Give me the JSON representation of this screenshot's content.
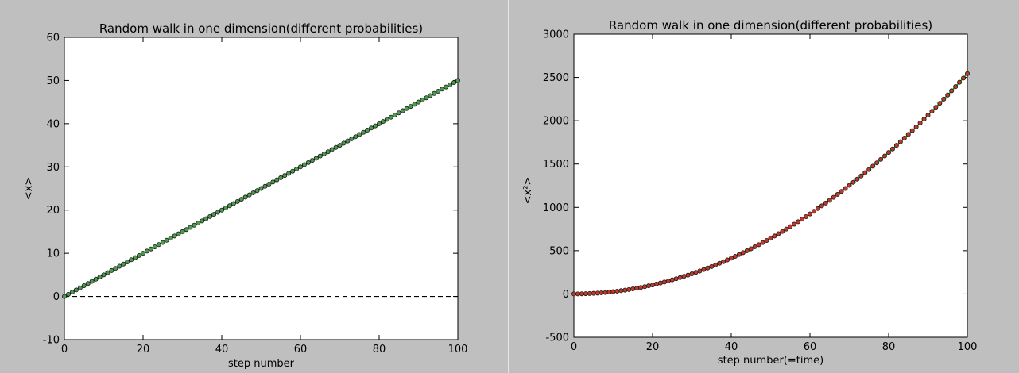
{
  "chart_data": [
    {
      "type": "scatter",
      "title": "Random walk in one dimension(different probabilities)",
      "xlabel": "step number",
      "ylabel": "<x>",
      "xlim": [
        0,
        100
      ],
      "ylim": [
        -10,
        60
      ],
      "xticks": [
        0,
        20,
        40,
        60,
        80,
        100
      ],
      "yticks": [
        -10,
        0,
        10,
        20,
        30,
        40,
        50,
        60
      ],
      "x": [
        0,
        1,
        2,
        3,
        4,
        5,
        6,
        7,
        8,
        9,
        10,
        11,
        12,
        13,
        14,
        15,
        16,
        17,
        18,
        19,
        20,
        21,
        22,
        23,
        24,
        25,
        26,
        27,
        28,
        29,
        30,
        31,
        32,
        33,
        34,
        35,
        36,
        37,
        38,
        39,
        40,
        41,
        42,
        43,
        44,
        45,
        46,
        47,
        48,
        49,
        50,
        51,
        52,
        53,
        54,
        55,
        56,
        57,
        58,
        59,
        60,
        61,
        62,
        63,
        64,
        65,
        66,
        67,
        68,
        69,
        70,
        71,
        72,
        73,
        74,
        75,
        76,
        77,
        78,
        79,
        80,
        81,
        82,
        83,
        84,
        85,
        86,
        87,
        88,
        89,
        90,
        91,
        92,
        93,
        94,
        95,
        96,
        97,
        98,
        99,
        100
      ],
      "series": [
        {
          "values": [
            0,
            0.5,
            1,
            1.5,
            2,
            2.5,
            3,
            3.5,
            4,
            4.5,
            5,
            5.5,
            6,
            6.5,
            7,
            7.5,
            8,
            8.5,
            9,
            9.5,
            10,
            10.5,
            11,
            11.5,
            12,
            12.5,
            13,
            13.5,
            14,
            14.5,
            15,
            15.5,
            16,
            16.5,
            17,
            17.5,
            18,
            18.5,
            19,
            19.5,
            20,
            20.5,
            21,
            21.5,
            22,
            22.5,
            23,
            23.5,
            24,
            24.5,
            25,
            25.5,
            26,
            26.5,
            27,
            27.5,
            28,
            28.5,
            29,
            29.5,
            30,
            30.5,
            31,
            31.5,
            32,
            32.5,
            33,
            33.5,
            34,
            34.5,
            35,
            35.5,
            36,
            36.5,
            37,
            37.5,
            38,
            38.5,
            39,
            39.5,
            40,
            40.5,
            41,
            41.5,
            42,
            42.5,
            43,
            43.5,
            44,
            44.5,
            45,
            45.5,
            46,
            46.5,
            47,
            47.5,
            48,
            48.5,
            49,
            49.5,
            50
          ],
          "marker_color": "#4f9a4f",
          "line_color": "#00a000"
        }
      ],
      "reference_line": {
        "y": 0,
        "style": "dashed",
        "color": "#000000"
      },
      "grid": false
    },
    {
      "type": "scatter",
      "title": "Random walk in one dimension(different probabilities)",
      "xlabel": "step number(=time)",
      "ylabel": "<x²>",
      "xlim": [
        0,
        100
      ],
      "ylim": [
        -500,
        3000
      ],
      "xticks": [
        0,
        20,
        40,
        60,
        80,
        100
      ],
      "yticks": [
        -500,
        0,
        500,
        1000,
        1500,
        2000,
        2500,
        3000
      ],
      "x": [
        0,
        1,
        2,
        3,
        4,
        5,
        6,
        7,
        8,
        9,
        10,
        11,
        12,
        13,
        14,
        15,
        16,
        17,
        18,
        19,
        20,
        21,
        22,
        23,
        24,
        25,
        26,
        27,
        28,
        29,
        30,
        31,
        32,
        33,
        34,
        35,
        36,
        37,
        38,
        39,
        40,
        41,
        42,
        43,
        44,
        45,
        46,
        47,
        48,
        49,
        50,
        51,
        52,
        53,
        54,
        55,
        56,
        57,
        58,
        59,
        60,
        61,
        62,
        63,
        64,
        65,
        66,
        67,
        68,
        69,
        70,
        71,
        72,
        73,
        74,
        75,
        76,
        77,
        78,
        79,
        80,
        81,
        82,
        83,
        84,
        85,
        86,
        87,
        88,
        89,
        90,
        91,
        92,
        93,
        94,
        95,
        96,
        97,
        98,
        99,
        100
      ],
      "series": [
        {
          "values": [
            0,
            1,
            2,
            3,
            5,
            7,
            10,
            13,
            17,
            22,
            27,
            32,
            38,
            44,
            51,
            59,
            67,
            75,
            84,
            94,
            104,
            115,
            126,
            138,
            150,
            163,
            176,
            189,
            204,
            218,
            233,
            249,
            265,
            282,
            299,
            317,
            335,
            354,
            373,
            393,
            414,
            434,
            456,
            477,
            500,
            522,
            546,
            569,
            594,
            618,
            644,
            669,
            696,
            722,
            750,
            777,
            806,
            834,
            864,
            893,
            924,
            954,
            986,
            1017,
            1050,
            1082,
            1116,
            1149,
            1184,
            1218,
            1254,
            1289,
            1326,
            1362,
            1400,
            1437,
            1476,
            1514,
            1554,
            1593,
            1634,
            1674,
            1716,
            1757,
            1800,
            1842,
            1886,
            1929,
            1974,
            2018,
            2064,
            2109,
            2156,
            2202,
            2250,
            2297,
            2346,
            2394,
            2444,
            2493,
            2544
          ],
          "marker_color": "#c0392b",
          "line_color": "#00a000"
        }
      ],
      "grid": false
    }
  ]
}
